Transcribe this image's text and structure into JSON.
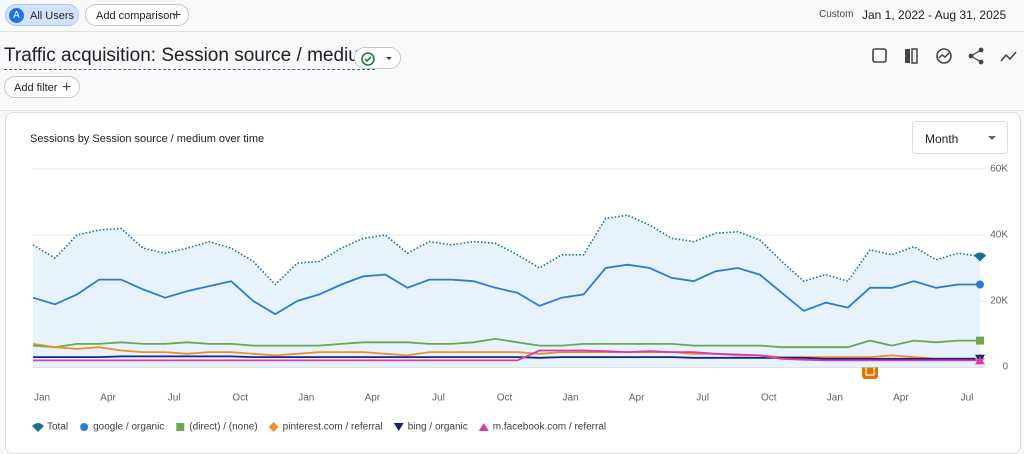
{
  "header": {
    "segment_badge": "A",
    "segment": "All Users",
    "add_comparison": "Add comparison",
    "date_mode": "Custom",
    "date_range": "Jan 1, 2022 - Aug 31, 2025",
    "report_title": "Traffic acquisition: Session source / medium",
    "add_filter": "Add filter"
  },
  "card": {
    "granularity": "Month"
  },
  "chart_data": {
    "type": "line",
    "title": "Sessions by Session source / medium over time",
    "categories": [
      "Jan",
      null,
      null,
      "Apr",
      null,
      null,
      "Jul",
      null,
      null,
      "Oct",
      null,
      null,
      "Jan",
      null,
      null,
      "Apr",
      null,
      null,
      "Jul",
      null,
      null,
      "Oct",
      null,
      null,
      "Jan",
      null,
      null,
      "Apr",
      null,
      null,
      "Jul",
      null,
      null,
      "Oct",
      null,
      null,
      "Jan",
      null,
      null,
      "Apr",
      null,
      null,
      "Jul",
      null
    ],
    "ylim": [
      0,
      60000
    ],
    "yticks": [
      0,
      {
        "value": 20000,
        "label": "20K"
      },
      {
        "value": 40000,
        "label": "40K"
      },
      {
        "value": 60000,
        "label": "60K"
      }
    ],
    "grid": true,
    "legend": "bottom",
    "series": [
      {
        "name": "Total",
        "color": "#1b6f8f",
        "style": "dotted",
        "area": true,
        "marker": "pin",
        "values": [
          37000,
          33000,
          40000,
          41500,
          42000,
          36000,
          34500,
          36000,
          38000,
          36000,
          32000,
          25000,
          31500,
          32000,
          36000,
          39000,
          40000,
          34500,
          38000,
          37000,
          38000,
          37500,
          34000,
          30000,
          34000,
          34000,
          45000,
          46000,
          43000,
          39000,
          38000,
          40500,
          41000,
          38500,
          32000,
          26000,
          28000,
          26000,
          35500,
          34000,
          36500,
          32500,
          34500,
          33500
        ]
      },
      {
        "name": "google / organic",
        "color": "#2d7bd1",
        "style": "solid",
        "marker": "circle",
        "values": [
          21000,
          19000,
          22000,
          26500,
          26500,
          23500,
          21000,
          23000,
          24500,
          26000,
          20000,
          16000,
          20000,
          22000,
          25000,
          27500,
          28000,
          24000,
          26500,
          26500,
          26000,
          24000,
          22500,
          18500,
          21000,
          22000,
          30000,
          31000,
          30000,
          27000,
          26000,
          29000,
          30000,
          28000,
          22500,
          17000,
          19500,
          18000,
          24000,
          24000,
          26000,
          24000,
          25000,
          25000
        ]
      },
      {
        "name": "(direct) / (none)",
        "color": "#6aa84f",
        "style": "solid",
        "marker": "square",
        "values": [
          6500,
          6000,
          7000,
          7000,
          7500,
          7000,
          7000,
          7500,
          7000,
          7000,
          6500,
          6500,
          6500,
          6500,
          7000,
          7500,
          7500,
          7500,
          7000,
          7000,
          7500,
          8500,
          7500,
          6500,
          6500,
          7000,
          7000,
          7000,
          7000,
          7000,
          6500,
          6500,
          6500,
          6500,
          6000,
          6000,
          6000,
          6000,
          8000,
          6500,
          8000,
          7500,
          8000,
          8000
        ]
      },
      {
        "name": "pinterest.com / referral",
        "color": "#e8912d",
        "style": "solid",
        "marker": "diamond",
        "values": [
          7000,
          6000,
          5500,
          6000,
          5000,
          4500,
          4500,
          4000,
          4500,
          4500,
          4000,
          3500,
          4000,
          4500,
          4500,
          4500,
          4000,
          3500,
          4500,
          4500,
          4500,
          4500,
          4500,
          4000,
          4500,
          4500,
          4500,
          4500,
          4500,
          4500,
          4000,
          4000,
          3500,
          3500,
          3000,
          3000,
          3000,
          3000,
          3000,
          3500,
          3000,
          2500,
          2500,
          2500
        ]
      },
      {
        "name": "bing / organic",
        "color": "#1a237e",
        "style": "solid",
        "marker": "triangle-down",
        "values": [
          3000,
          3000,
          3000,
          3000,
          3200,
          3200,
          3200,
          3200,
          3200,
          3200,
          3000,
          3000,
          3000,
          3000,
          3000,
          3000,
          3000,
          3000,
          3000,
          3000,
          3000,
          3000,
          3000,
          2800,
          3000,
          3000,
          3000,
          3000,
          3000,
          3000,
          2800,
          2800,
          2800,
          2800,
          2800,
          2800,
          2500,
          2500,
          2500,
          2500,
          2500,
          2500,
          2500,
          2500
        ]
      },
      {
        "name": "m.facebook.com / referral",
        "color": "#d63ab0",
        "style": "solid",
        "marker": "triangle-up",
        "values": [
          2000,
          2000,
          2000,
          2000,
          2000,
          2000,
          2000,
          2000,
          2000,
          2000,
          2000,
          2000,
          2000,
          2000,
          2000,
          2000,
          2000,
          2000,
          2000,
          2000,
          2000,
          2000,
          2000,
          5000,
          5000,
          5000,
          4800,
          4500,
          4800,
          4500,
          4500,
          4000,
          3800,
          3500,
          2500,
          2200,
          2000,
          2000,
          2000,
          2000,
          2000,
          2000,
          2000,
          2000
        ]
      }
    ]
  }
}
